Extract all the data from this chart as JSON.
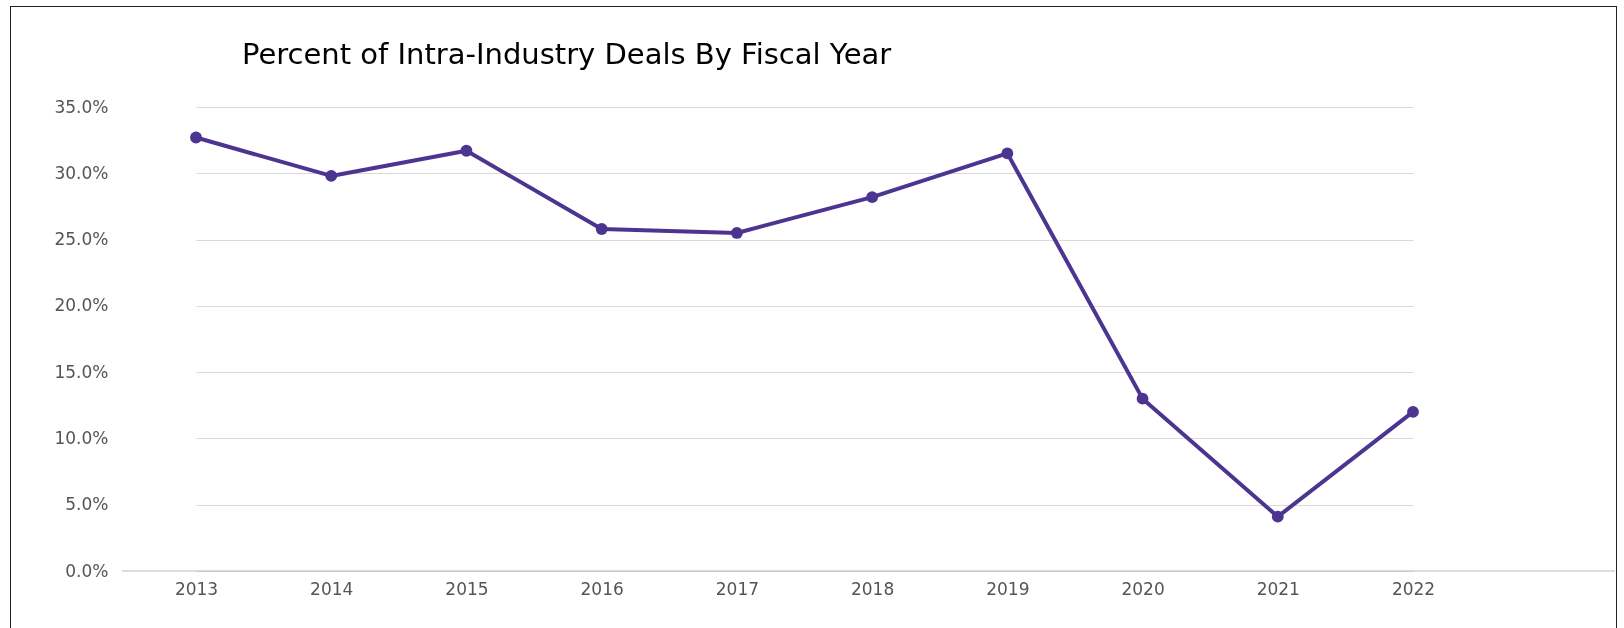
{
  "chart_data": {
    "type": "line",
    "title": "Percent of Intra-Industry Deals By Fiscal Year",
    "categories": [
      "2013",
      "2014",
      "2015",
      "2016",
      "2017",
      "2018",
      "2019",
      "2020",
      "2021",
      "2022"
    ],
    "series": [
      {
        "color": "#4b3591",
        "values": [
          32.7,
          29.8,
          31.7,
          25.8,
          25.5,
          28.2,
          31.5,
          13.0,
          4.1,
          12.0
        ]
      }
    ],
    "ylim": [
      0,
      35
    ],
    "yticks": [
      {
        "value": 0,
        "label": "0.0%"
      },
      {
        "value": 5,
        "label": "5.0%"
      },
      {
        "value": 10,
        "label": "10.0%"
      },
      {
        "value": 15,
        "label": "15.0%"
      },
      {
        "value": 20,
        "label": "20.0%"
      },
      {
        "value": 25,
        "label": "25.0%"
      },
      {
        "value": 30,
        "label": "30.0%"
      },
      {
        "value": 35,
        "label": "35.0%"
      }
    ],
    "grid": "y",
    "marker": "circle",
    "line_style": "solid",
    "legend": false
  }
}
